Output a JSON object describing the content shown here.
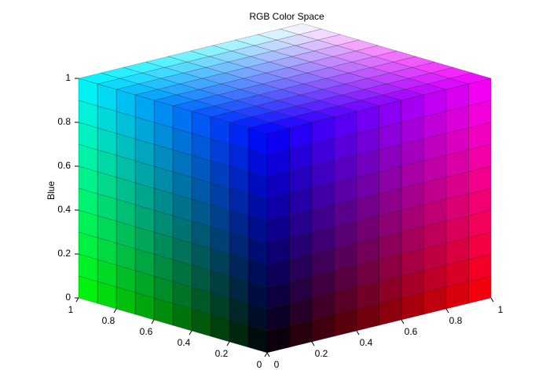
{
  "chart_data": {
    "type": "color-cube",
    "title": "RGB Color Space",
    "zlabel": "Blue",
    "xlim": [
      0,
      1
    ],
    "xticks": [
      0,
      0.2,
      0.4,
      0.6,
      0.8,
      1
    ],
    "ylim": [
      0,
      1
    ],
    "yticks": [
      0,
      0.2,
      0.4,
      0.6,
      0.8,
      1
    ],
    "zlim": [
      0,
      1
    ],
    "zticks": [
      0,
      0.2,
      0.4,
      0.6,
      0.8,
      1
    ],
    "grid": true
  }
}
